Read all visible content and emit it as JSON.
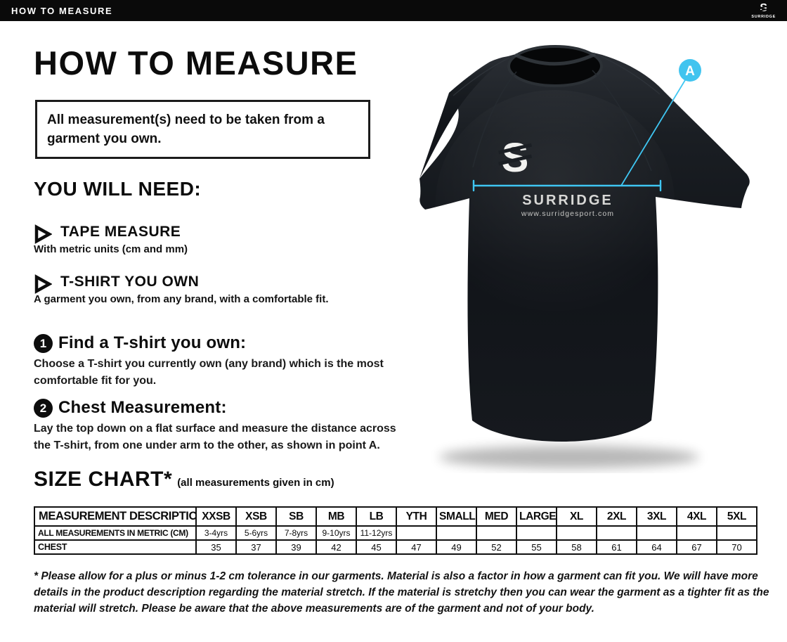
{
  "top_bar": {
    "title": "HOW TO MEASURE",
    "bg": "#0a0a0a"
  },
  "brand": {
    "letter": "S",
    "name": "SURRIDGE",
    "website": "www.surridgesport.com"
  },
  "heading": "HOW TO MEASURE",
  "notice": "All measurement(s) need to be taken from a garment you own.",
  "you_will_need": {
    "title": "YOU WILL NEED:",
    "items": [
      {
        "label": "TAPE MEASURE",
        "description": "With metric units (cm and mm)"
      },
      {
        "label": "T-SHIRT YOU OWN",
        "description": "A garment you own, from any brand, with a comfortable fit."
      }
    ]
  },
  "steps": [
    {
      "number": "1",
      "title": "Find a T-shirt you own:",
      "description": "Choose a T-shirt you currently own (any brand) which is the most comfortable fit for you."
    },
    {
      "number": "2",
      "title": "Chest Measurement:",
      "description": "Lay the top down on a flat surface and measure the distance across the T-shirt, from one under arm to the other, as shown in point A."
    }
  ],
  "size_chart": {
    "title": "SIZE CHART*",
    "subtitle": "(all measurements given in cm)",
    "columns": [
      "MEASUREMENT DESCRIPTION",
      "XXSB",
      "XSB",
      "SB",
      "MB",
      "LB",
      "YTH",
      "SMALL",
      "MED",
      "LARGE",
      "XL",
      "2XL",
      "3XL",
      "4XL",
      "5XL"
    ],
    "rows": [
      {
        "label": "ALL MEASUREMENTS IN METRIC (CM)",
        "values": [
          "3-4yrs",
          "5-6yrs",
          "7-8yrs",
          "9-10yrs",
          "11-12yrs",
          "",
          "",
          "",
          "",
          "",
          "",
          "",
          "",
          ""
        ]
      },
      {
        "label": "CHEST",
        "values": [
          "35",
          "37",
          "39",
          "42",
          "45",
          "47",
          "49",
          "52",
          "55",
          "58",
          "61",
          "64",
          "67",
          "70"
        ]
      }
    ]
  },
  "footnote": "* Please allow for a plus or minus 1-2 cm tolerance in our garments. Material is also a factor in how a garment can fit you. We will have more details in the product description regarding the material stretch.  If the material is stretchy then you can wear the garment as a tighter fit as the material will stretch.  Please be aware that the above measurements are of the garment and not of your body.",
  "figure": {
    "marker_label": "A",
    "accent_color": "#3fc6f2",
    "shirt_color": "#14171b"
  }
}
